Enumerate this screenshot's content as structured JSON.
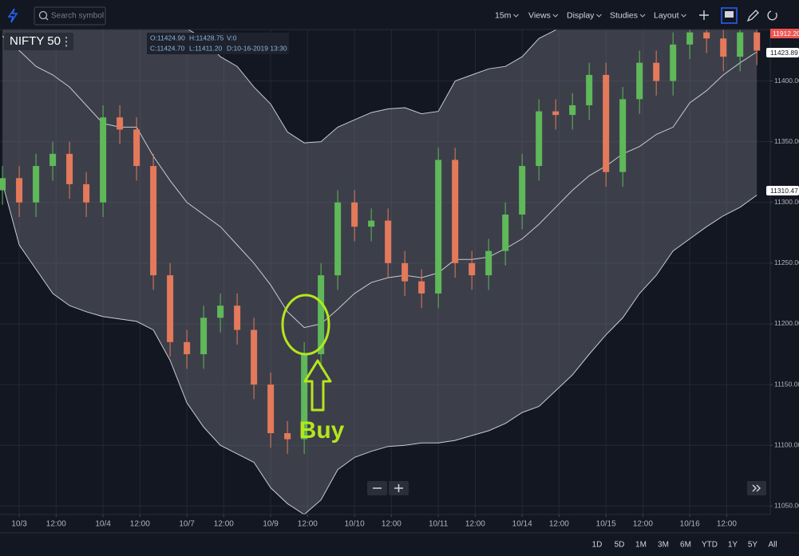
{
  "toolbar": {
    "search_placeholder": "Search symbol",
    "items": [
      "15m",
      "Views",
      "Display",
      "Studies",
      "Layout"
    ]
  },
  "legend": {
    "symbol": "NIFTY 50",
    "ohlc": [
      "O:11424.90",
      "H:11428.75",
      "V:0",
      "C:11424.70",
      "L:11411.20",
      "D:10-16-2019 13:30"
    ]
  },
  "price_tags": [
    "11912.20",
    "11423.89",
    "11310.47"
  ],
  "annotation": "Buy",
  "range_buttons": [
    "1D",
    "5D",
    "1M",
    "3M",
    "6M",
    "YTD",
    "1Y",
    "5Y",
    "All"
  ],
  "chart_data": {
    "type": "candlestick",
    "x": [
      -75,
      0,
      75,
      150,
      225,
      300,
      375,
      450,
      525,
      600,
      675,
      750,
      825,
      900,
      975,
      1050,
      1125,
      1200,
      1275,
      1350,
      1425,
      1500,
      1575,
      1650,
      1725,
      1800,
      1875,
      1950,
      2025,
      2100,
      2175,
      2250,
      2325,
      2400,
      2475,
      2550,
      2625,
      2700,
      2775,
      2850,
      2925,
      3000,
      3075,
      3150,
      3225,
      3300
    ],
    "open": [
      11310,
      11320,
      11300,
      11330,
      11340,
      11315,
      11300,
      11370,
      11360,
      11330,
      11240,
      11185,
      11175,
      11205,
      11215,
      11195,
      11150,
      11110,
      11105,
      11175,
      11240,
      11300,
      11280,
      11285,
      11250,
      11235,
      11225,
      11335,
      11250,
      11240,
      11260,
      11290,
      11330,
      11375,
      11372,
      11380,
      11405,
      11325,
      11385,
      11415,
      11400,
      11430,
      11440,
      11435,
      11420,
      11440
    ],
    "high": [
      11330,
      11330,
      11340,
      11350,
      11350,
      11325,
      11380,
      11380,
      11370,
      11340,
      11250,
      11195,
      11215,
      11225,
      11225,
      11205,
      11160,
      11120,
      11185,
      11250,
      11310,
      11310,
      11295,
      11295,
      11260,
      11245,
      11345,
      11345,
      11260,
      11270,
      11300,
      11340,
      11385,
      11385,
      11390,
      11415,
      11415,
      11395,
      11425,
      11425,
      11440,
      11450,
      11450,
      11445,
      11450,
      11450
    ],
    "low": [
      11298,
      11288,
      11288,
      11318,
      11303,
      11288,
      11288,
      11348,
      11318,
      11228,
      11173,
      11163,
      11163,
      11193,
      11183,
      11138,
      11098,
      11093,
      11093,
      11163,
      11228,
      11268,
      11268,
      11238,
      11223,
      11213,
      11213,
      11238,
      11228,
      11228,
      11248,
      11278,
      11318,
      11360,
      11360,
      11368,
      11313,
      11313,
      11373,
      11388,
      11388,
      11418,
      11423,
      11408,
      11408,
      11413
    ],
    "close": [
      11320,
      11300,
      11330,
      11340,
      11315,
      11300,
      11370,
      11360,
      11330,
      11240,
      11185,
      11175,
      11205,
      11215,
      11195,
      11150,
      11110,
      11105,
      11175,
      11240,
      11300,
      11280,
      11285,
      11250,
      11235,
      11225,
      11335,
      11250,
      11240,
      11260,
      11290,
      11330,
      11375,
      11372,
      11380,
      11405,
      11325,
      11385,
      11415,
      11400,
      11430,
      11440,
      11435,
      11420,
      11440,
      11425
    ],
    "upper_band": [
      11460,
      11455,
      11450,
      11448,
      11447,
      11447,
      11447,
      11447,
      11447,
      11446,
      11445,
      11443,
      11435,
      11420,
      11412,
      11395,
      11381,
      11358,
      11349,
      11350,
      11362,
      11368,
      11374,
      11377,
      11378,
      11373,
      11375,
      11400,
      11405,
      11410,
      11412,
      11420,
      11435,
      11442,
      11448,
      11455,
      11460,
      11465,
      11470,
      11470,
      11470,
      11470,
      11470,
      11470,
      11470,
      11470
    ],
    "middle_band": [
      11437,
      11425,
      11412,
      11405,
      11395,
      11380,
      11365,
      11362,
      11362,
      11338,
      11318,
      11300,
      11290,
      11280,
      11265,
      11250,
      11232,
      11210,
      11197,
      11200,
      11212,
      11225,
      11234,
      11238,
      11240,
      11238,
      11242,
      11253,
      11253,
      11255,
      11262,
      11270,
      11282,
      11296,
      11310,
      11322,
      11330,
      11340,
      11346,
      11356,
      11362,
      11382,
      11392,
      11405,
      11415,
      11424
    ],
    "lower_band": [
      11316,
      11265,
      11245,
      11225,
      11215,
      11210,
      11206,
      11204,
      11202,
      11195,
      11170,
      11135,
      11115,
      11100,
      11093,
      11086,
      11065,
      11052,
      11043,
      11055,
      11080,
      11090,
      11095,
      11099,
      11100,
      11102,
      11102,
      11104,
      11108,
      11112,
      11118,
      11127,
      11132,
      11145,
      11158,
      11175,
      11191,
      11205,
      11225,
      11240,
      11260,
      11270,
      11280,
      11289,
      11296,
      11306
    ],
    "colors": {
      "up": "#5fb85a",
      "down": "#e4795b",
      "band_line": "#c9cbd1",
      "band_fill": "#6f727b"
    },
    "xlim": [
      -86,
      3360
    ],
    "ylim": [
      11043,
      11445
    ],
    "xticks": [
      {
        "value": 0,
        "label": "10/3"
      },
      {
        "value": 165,
        "label": "12:00"
      },
      {
        "value": 375,
        "label": "10/4"
      },
      {
        "value": 540,
        "label": "12:00"
      },
      {
        "value": 750,
        "label": "10/7"
      },
      {
        "value": 915,
        "label": "12:00"
      },
      {
        "value": 1125,
        "label": "10/9"
      },
      {
        "value": 1290,
        "label": "12:00"
      },
      {
        "value": 1500,
        "label": "10/10"
      },
      {
        "value": 1665,
        "label": "12:00"
      },
      {
        "value": 1875,
        "label": "10/11"
      },
      {
        "value": 2040,
        "label": "12:00"
      },
      {
        "value": 2250,
        "label": "10/14"
      },
      {
        "value": 2415,
        "label": "12:00"
      },
      {
        "value": 2625,
        "label": "10/15"
      },
      {
        "value": 2790,
        "label": "12:00"
      },
      {
        "value": 3000,
        "label": "10/16"
      },
      {
        "value": 3165,
        "label": "12:00"
      }
    ],
    "yticks": [
      {
        "value": 11050,
        "label": "11050.00"
      },
      {
        "value": 11100,
        "label": "11100.00"
      },
      {
        "value": 11150,
        "label": "11150.00"
      },
      {
        "value": 11200,
        "label": "11200.00"
      },
      {
        "value": 11250,
        "label": "11250.00"
      },
      {
        "value": 11300,
        "label": "11300.00"
      },
      {
        "value": 11350,
        "label": "11350.00"
      },
      {
        "value": 11400,
        "label": "11400.00"
      }
    ],
    "grid": true
  }
}
